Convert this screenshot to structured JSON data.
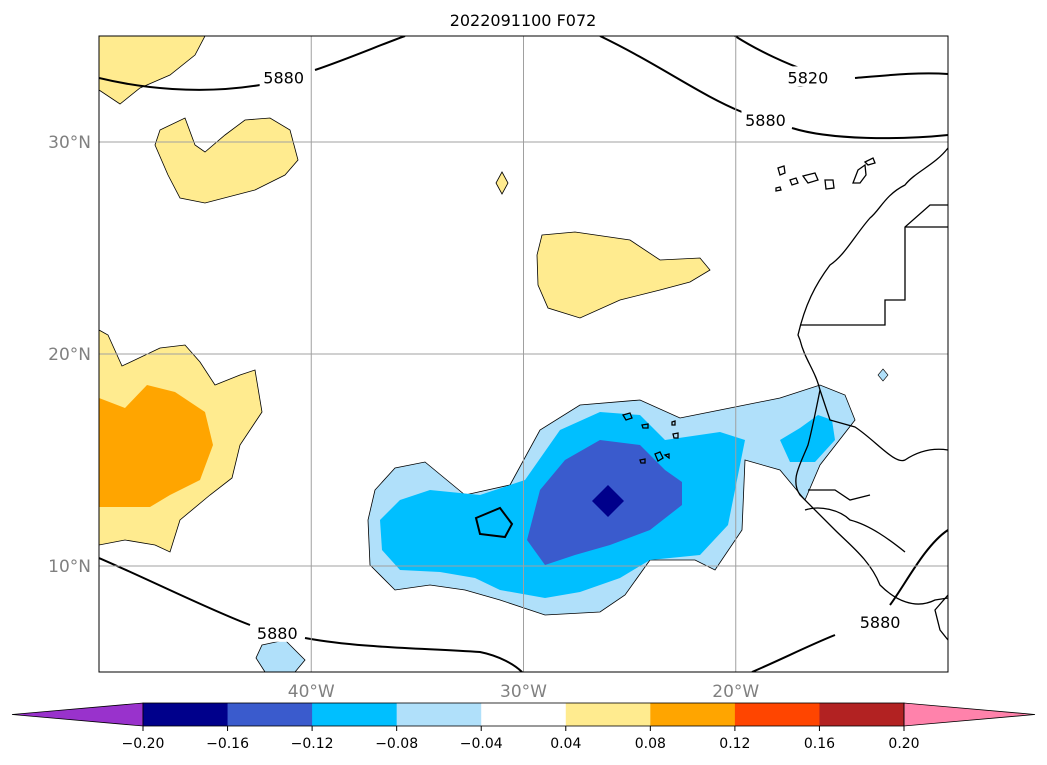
{
  "title": "2022091100 F072",
  "map": {
    "lon_range": [
      -50,
      -10
    ],
    "lat_range": [
      5,
      35
    ],
    "lat_ticks": [
      {
        "value": 30,
        "label": "30°N"
      },
      {
        "value": 20,
        "label": "20°N"
      },
      {
        "value": 10,
        "label": "10°N"
      }
    ],
    "lon_ticks": [
      {
        "value": -40,
        "label": "40°W"
      },
      {
        "value": -30,
        "label": "30°W"
      },
      {
        "value": -20,
        "label": "20°W"
      }
    ],
    "gridlines": true
  },
  "contour_labels": [
    {
      "text": "5880",
      "lon": -41.3,
      "lat": 33.0
    },
    {
      "text": "5820",
      "lon": -16.6,
      "lat": 33.0
    },
    {
      "text": "5880",
      "lon": -18.6,
      "lat": 31.0
    },
    {
      "text": "5880",
      "lon": -41.6,
      "lat": 6.8
    },
    {
      "text": "5880",
      "lon": -13.2,
      "lat": 7.3
    }
  ],
  "colorbar": {
    "levels": [
      "−0.20",
      "−0.16",
      "−0.12",
      "−0.08",
      "−0.04",
      "0.04",
      "0.08",
      "0.12",
      "0.16",
      "0.20"
    ],
    "colors": [
      "#9932cc",
      "#00008b",
      "#3a5bcd",
      "#00bfff",
      "#b0e0fa",
      "#ffffff",
      "#ffeb8f",
      "#ffa500",
      "#ff4500",
      "#b22222",
      "#ff82ab"
    ],
    "extend": "both"
  }
}
